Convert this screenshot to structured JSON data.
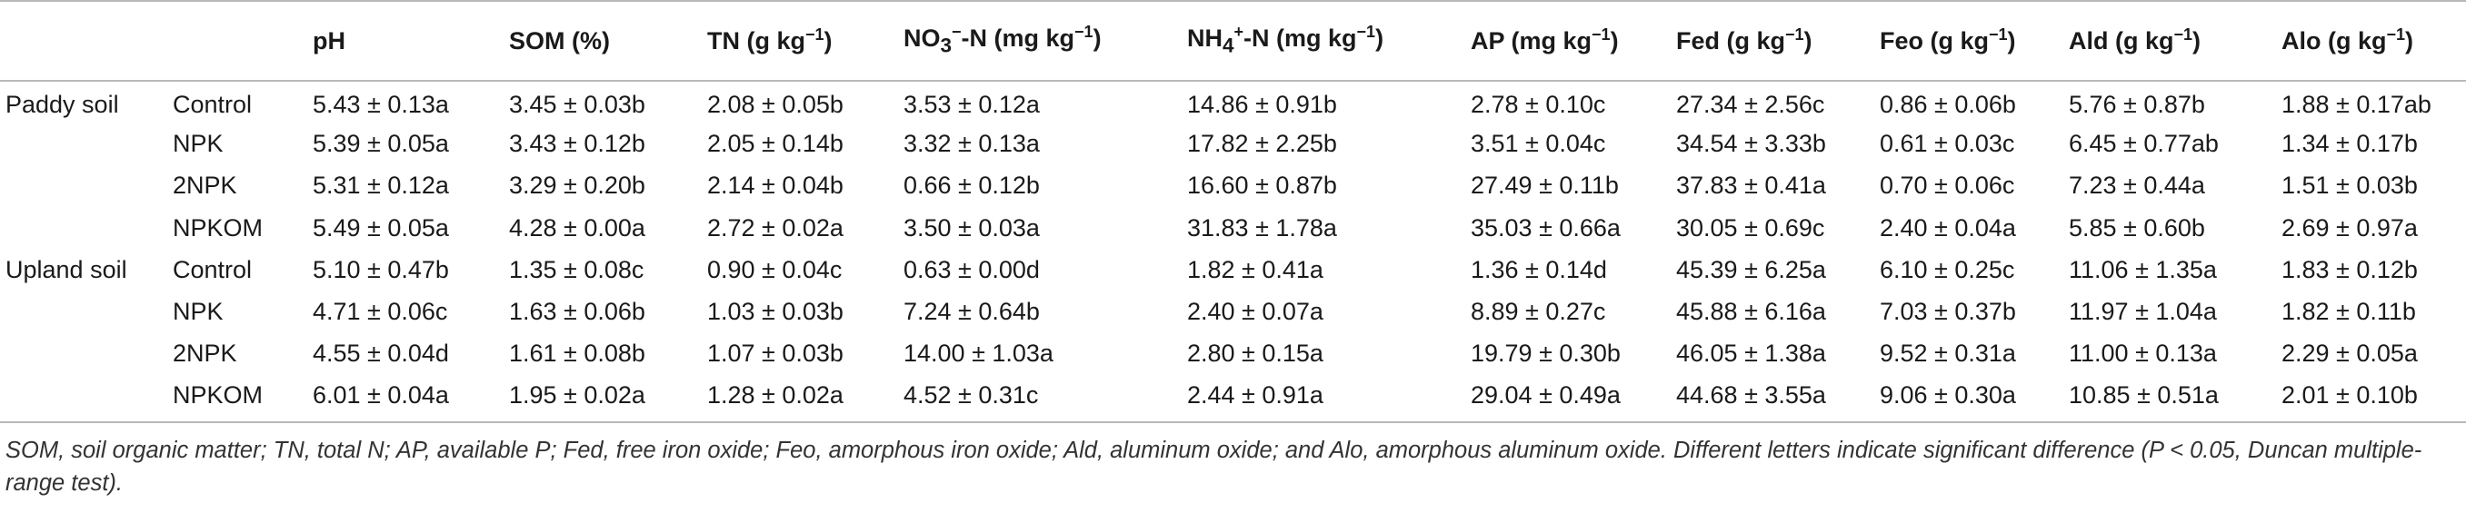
{
  "table": {
    "headers": [
      {
        "text": "",
        "sup": ""
      },
      {
        "text": "",
        "sup": ""
      },
      {
        "text": "pH",
        "sup": ""
      },
      {
        "text": "SOM (%)",
        "sup": ""
      },
      {
        "text": "TN (g kg",
        "sup": "−1",
        "after": ")"
      },
      {
        "text": "NO",
        "sub": "3",
        "sup2": "−",
        "after": "-N (mg kg",
        "sup": "−1",
        "after2": ")"
      },
      {
        "text": "NH",
        "sub": "4",
        "sup2": "+",
        "after": "-N (mg kg",
        "sup": "−1",
        "after2": ")"
      },
      {
        "text": "AP (mg kg",
        "sup": "−1",
        "after": ")"
      },
      {
        "text": "Fed (g kg",
        "sup": "−1",
        "after": ")"
      },
      {
        "text": "Feo (g kg",
        "sup": "−1",
        "after": ")"
      },
      {
        "text": "Ald (g kg",
        "sup": "−1",
        "after": ")"
      },
      {
        "text": "Alo (g kg",
        "sup": "−1",
        "after": ")"
      }
    ],
    "rows": [
      {
        "soil": "Paddy soil",
        "treatment": "Control",
        "values": [
          "5.43 ± 0.13a",
          "3.45 ± 0.03b",
          "2.08 ± 0.05b",
          "3.53 ± 0.12a",
          "14.86 ± 0.91b",
          "2.78 ± 0.10c",
          "27.34 ± 2.56c",
          "0.86 ± 0.06b",
          "5.76 ± 0.87b",
          "1.88 ± 0.17ab"
        ]
      },
      {
        "soil": "",
        "treatment": "NPK",
        "values": [
          "5.39 ± 0.05a",
          "3.43 ± 0.12b",
          "2.05 ± 0.14b",
          "3.32 ± 0.13a",
          "17.82 ± 2.25b",
          "3.51 ± 0.04c",
          "34.54 ± 3.33b",
          "0.61 ± 0.03c",
          "6.45 ± 0.77ab",
          "1.34 ± 0.17b"
        ]
      },
      {
        "soil": "",
        "treatment": "2NPK",
        "values": [
          "5.31 ± 0.12a",
          "3.29 ± 0.20b",
          "2.14 ± 0.04b",
          "0.66 ± 0.12b",
          "16.60 ± 0.87b",
          "27.49 ± 0.11b",
          "37.83 ± 0.41a",
          "0.70 ± 0.06c",
          "7.23 ± 0.44a",
          "1.51 ± 0.03b"
        ]
      },
      {
        "soil": "",
        "treatment": "NPKOM",
        "values": [
          "5.49 ± 0.05a",
          "4.28 ± 0.00a",
          "2.72 ± 0.02a",
          "3.50 ± 0.03a",
          "31.83 ± 1.78a",
          "35.03 ± 0.66a",
          "30.05 ± 0.69c",
          "2.40 ± 0.04a",
          "5.85 ± 0.60b",
          "2.69 ± 0.97a"
        ]
      },
      {
        "soil": "Upland soil",
        "treatment": "Control",
        "values": [
          "5.10 ± 0.47b",
          "1.35 ± 0.08c",
          "0.90 ± 0.04c",
          "0.63 ± 0.00d",
          "1.82 ± 0.41a",
          "1.36 ± 0.14d",
          "45.39 ± 6.25a",
          "6.10 ± 0.25c",
          "11.06 ± 1.35a",
          "1.83 ± 0.12b"
        ]
      },
      {
        "soil": "",
        "treatment": "NPK",
        "values": [
          "4.71 ± 0.06c",
          "1.63 ± 0.06b",
          "1.03 ± 0.03b",
          "7.24 ± 0.64b",
          "2.40 ± 0.07a",
          "8.89 ± 0.27c",
          "45.88 ± 6.16a",
          "7.03 ± 0.37b",
          "11.97 ± 1.04a",
          "1.82 ± 0.11b"
        ]
      },
      {
        "soil": "",
        "treatment": "2NPK",
        "values": [
          "4.55 ± 0.04d",
          "1.61 ± 0.08b",
          "1.07 ± 0.03b",
          "14.00 ± 1.03a",
          "2.80 ± 0.15a",
          "19.79 ± 0.30b",
          "46.05 ± 1.38a",
          "9.52 ± 0.31a",
          "11.00 ± 0.13a",
          "2.29 ± 0.05a"
        ]
      },
      {
        "soil": "",
        "treatment": "NPKOM",
        "values": [
          "6.01 ± 0.04a",
          "1.95 ± 0.02a",
          "1.28 ± 0.02a",
          "4.52 ± 0.31c",
          "2.44 ± 0.91a",
          "29.04 ± 0.49a",
          "44.68 ± 3.55a",
          "9.06 ± 0.30a",
          "10.85 ± 0.51a",
          "2.01 ± 0.10b"
        ]
      }
    ]
  },
  "footnote": "SOM, soil organic matter; TN, total N; AP, available P; Fed, free iron oxide; Feo, amorphous iron oxide; Ald, aluminum oxide; and Alo, amorphous aluminum oxide. Different letters indicate significant difference (P < 0.05, Duncan multiple-range test)."
}
